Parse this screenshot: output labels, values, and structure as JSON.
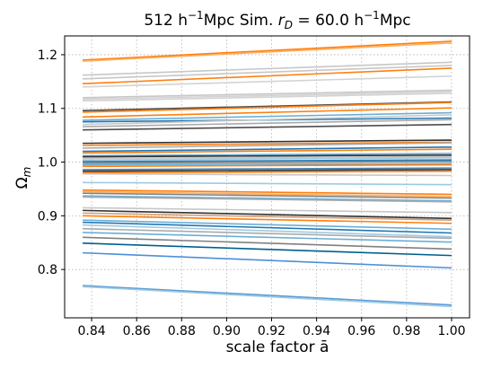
{
  "chart_data": {
    "type": "line",
    "title": {
      "pre": "512 h",
      "sup1": "−1",
      "mid": "Mpc Sim. ",
      "r": "r",
      "sub": "D",
      "eq": " = 60.0 h",
      "sup2": "−1",
      "post": "Mpc"
    },
    "xlabel": "scale factor ā",
    "ylabel": "Ω",
    "ylabel_sub": "m",
    "xlim": [
      0.828,
      1.008
    ],
    "ylim": [
      0.71,
      1.235
    ],
    "xticks": [
      "0.84",
      "0.86",
      "0.88",
      "0.90",
      "0.92",
      "0.94",
      "0.96",
      "0.98",
      "1.00"
    ],
    "yticks": [
      "0.8",
      "0.9",
      "1.0",
      "1.1",
      "1.2"
    ],
    "grid": true,
    "x": [
      0.836,
      1.0
    ],
    "series": [
      {
        "values": [
          1.19,
          1.225
        ],
        "color": "#ff7f0e"
      },
      {
        "values": [
          1.188,
          1.222
        ],
        "color": "#ffae5e"
      },
      {
        "values": [
          1.162,
          1.186
        ],
        "color": "#c7c7c7"
      },
      {
        "values": [
          1.155,
          1.18
        ],
        "color": "#c7c7c7"
      },
      {
        "values": [
          1.146,
          1.175
        ],
        "color": "#ff7f0e"
      },
      {
        "values": [
          1.14,
          1.16
        ],
        "color": "#d3d3d3"
      },
      {
        "values": [
          1.12,
          1.134
        ],
        "color": "#c7c7c7"
      },
      {
        "values": [
          1.117,
          1.131
        ],
        "color": "#d3d3d3"
      },
      {
        "values": [
          1.114,
          1.128
        ],
        "color": "#d3d3d3"
      },
      {
        "values": [
          1.096,
          1.112
        ],
        "color": "#4d4d4d"
      },
      {
        "values": [
          1.093,
          1.111
        ],
        "color": "#ff7f0e"
      },
      {
        "values": [
          1.084,
          1.101
        ],
        "color": "#ff7f0e"
      },
      {
        "values": [
          1.078,
          1.092
        ],
        "color": "#6baed6"
      },
      {
        "values": [
          1.075,
          1.082
        ],
        "color": "#1f77b4"
      },
      {
        "values": [
          1.07,
          1.088
        ],
        "color": "#c7c7c7"
      },
      {
        "values": [
          1.066,
          1.079
        ],
        "color": "#a9a9a9"
      },
      {
        "values": [
          1.06,
          1.07
        ],
        "color": "#4d4d4d"
      },
      {
        "values": [
          1.035,
          1.041
        ],
        "color": "#333333"
      },
      {
        "values": [
          1.031,
          1.037
        ],
        "color": "#ff7f0e"
      },
      {
        "values": [
          1.026,
          1.036
        ],
        "color": "#a9a9a9"
      },
      {
        "values": [
          1.02,
          1.028
        ],
        "color": "#1f77b4"
      },
      {
        "values": [
          1.017,
          1.024
        ],
        "color": "#ff7f0e"
      },
      {
        "values": [
          1.012,
          1.016
        ],
        "color": "#6baed6"
      },
      {
        "values": [
          1.01,
          1.013
        ],
        "color": "#333333"
      },
      {
        "values": [
          1.007,
          1.01
        ],
        "color": "#c7c7c7"
      },
      {
        "values": [
          1.004,
          1.008
        ],
        "color": "#9ecae1"
      },
      {
        "values": [
          1.001,
          1.004
        ],
        "color": "#1f77b4"
      },
      {
        "values": [
          0.998,
          1.001
        ],
        "color": "#808080"
      },
      {
        "values": [
          0.995,
          0.997
        ],
        "color": "#6baed6"
      },
      {
        "values": [
          0.992,
          0.995
        ],
        "color": "#ff7f0e"
      },
      {
        "values": [
          0.986,
          0.989
        ],
        "color": "#4682b4"
      },
      {
        "values": [
          0.983,
          0.986
        ],
        "color": "#333333"
      },
      {
        "values": [
          0.98,
          0.983
        ],
        "color": "#ff7f0e"
      },
      {
        "values": [
          0.978,
          0.975
        ],
        "color": "#c7c7c7"
      },
      {
        "values": [
          0.962,
          0.958
        ],
        "color": "#9ecae1"
      },
      {
        "values": [
          0.948,
          0.94
        ],
        "color": "#ff7f0e"
      },
      {
        "values": [
          0.945,
          0.936
        ],
        "color": "#ffae5e"
      },
      {
        "values": [
          0.942,
          0.933
        ],
        "color": "#808080"
      },
      {
        "values": [
          0.937,
          0.928
        ],
        "color": "#6baed6"
      },
      {
        "values": [
          0.935,
          0.926
        ],
        "color": "#a9a9a9"
      },
      {
        "values": [
          0.915,
          0.906
        ],
        "color": "#c7c7c7"
      },
      {
        "values": [
          0.91,
          0.895
        ],
        "color": "#333333"
      },
      {
        "values": [
          0.905,
          0.892
        ],
        "color": "#d2a07a"
      },
      {
        "values": [
          0.9,
          0.886
        ],
        "color": "#ff7f0e"
      },
      {
        "values": [
          0.892,
          0.875
        ],
        "color": "#6baed6"
      },
      {
        "values": [
          0.888,
          0.868
        ],
        "color": "#1f77b4"
      },
      {
        "values": [
          0.883,
          0.861
        ],
        "color": "#9ecae1"
      },
      {
        "values": [
          0.876,
          0.858
        ],
        "color": "#a9a9a9"
      },
      {
        "values": [
          0.869,
          0.851
        ],
        "color": "#6baed6"
      },
      {
        "values": [
          0.86,
          0.838
        ],
        "color": "#808080"
      },
      {
        "values": [
          0.849,
          0.826
        ],
        "color": "#005f8f"
      },
      {
        "values": [
          0.831,
          0.803
        ],
        "color": "#4a90d9"
      },
      {
        "values": [
          0.77,
          0.734
        ],
        "color": "#5b9bd5"
      },
      {
        "values": [
          0.768,
          0.731
        ],
        "color": "#9ecae1"
      }
    ]
  }
}
